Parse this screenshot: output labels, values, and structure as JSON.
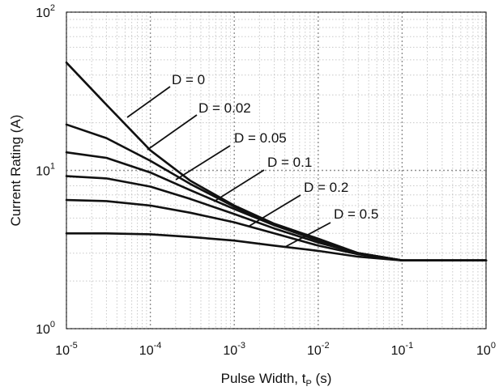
{
  "chart_data": {
    "type": "line",
    "xlabel": "Pulse Width, tP (s)",
    "xlabel_parts": {
      "main": "Pulse Width, t",
      "sub": "P",
      "tail": " (s)"
    },
    "ylabel": "Current Rating (A)",
    "x_scale": "log",
    "y_scale": "log",
    "xlim": [
      1e-05,
      1
    ],
    "ylim": [
      1,
      100
    ],
    "grid": true,
    "legend": "labels with leader lines",
    "x_ticks": [
      {
        "base": "10",
        "exp": "-5",
        "value": 1e-05
      },
      {
        "base": "10",
        "exp": "-4",
        "value": 0.0001
      },
      {
        "base": "10",
        "exp": "-3",
        "value": 0.001
      },
      {
        "base": "10",
        "exp": "-2",
        "value": 0.01
      },
      {
        "base": "10",
        "exp": "-1",
        "value": 0.1
      },
      {
        "base": "10",
        "exp": "0",
        "value": 1
      }
    ],
    "y_ticks": [
      {
        "base": "10",
        "exp": "0",
        "value": 1
      },
      {
        "base": "10",
        "exp": "1",
        "value": 10
      },
      {
        "base": "10",
        "exp": "2",
        "value": 100
      }
    ],
    "x": [
      1e-05,
      3e-05,
      0.0001,
      0.0003,
      0.001,
      0.003,
      0.01,
      0.03,
      0.1,
      0.3,
      1
    ],
    "series": [
      {
        "name": "D = 0",
        "values": [
          48,
          26,
          13.4,
          8.6,
          6.0,
          4.6,
          3.7,
          3.0,
          2.7,
          2.7,
          2.7
        ],
        "label_x": 0.0005,
        "label_y": 21,
        "leader_from": [
          5.5e-05,
          21
        ],
        "leader_to": [
          5e-06,
          16
        ]
      },
      {
        "name": "D = 0.02",
        "values": [
          19.5,
          16.0,
          11.5,
          8.2,
          5.9,
          4.55,
          3.65,
          3.0,
          2.7,
          2.7,
          2.7
        ],
        "label_x": 0.0005,
        "label_y": 14,
        "leader_from": [
          3.5e-05,
          13.8
        ],
        "leader_to": [
          7e-06,
          10.3
        ]
      },
      {
        "name": "D = 0.05",
        "values": [
          13,
          12.0,
          9.7,
          7.5,
          5.7,
          4.5,
          3.6,
          3.0,
          2.7,
          2.7,
          2.7
        ],
        "label_x": 0.0005,
        "label_y": 11,
        "leader_from": [
          0.00015,
          11.1
        ],
        "leader_to": [
          1.8e-05,
          8.1
        ]
      },
      {
        "name": "D = 0.1",
        "values": [
          9.2,
          8.9,
          7.9,
          6.6,
          5.3,
          4.3,
          3.5,
          3.0,
          2.7,
          2.7,
          2.7
        ],
        "label_x": 0.0005,
        "label_y": 8,
        "leader_from": [
          0.0005,
          8.4
        ],
        "leader_to": [
          8e-05,
          7.6
        ]
      },
      {
        "name": "D = 0.2",
        "values": [
          6.5,
          6.4,
          6.0,
          5.4,
          4.7,
          4.0,
          3.35,
          2.95,
          2.7,
          2.7,
          2.7
        ],
        "label_x": 0.0005,
        "label_y": 6,
        "leader_from": [
          0.0015,
          5.4
        ],
        "leader_to": [
          0.0004,
          6.5
        ]
      },
      {
        "name": "D = 0.5",
        "values": [
          4.0,
          4.0,
          3.95,
          3.8,
          3.6,
          3.35,
          3.1,
          2.85,
          2.7,
          2.7,
          2.7
        ],
        "label_x": 0.0005,
        "label_y": 4,
        "leader_from": [
          0.004,
          3.3
        ],
        "leader_to": [
          0.001,
          3.8
        ]
      }
    ]
  }
}
